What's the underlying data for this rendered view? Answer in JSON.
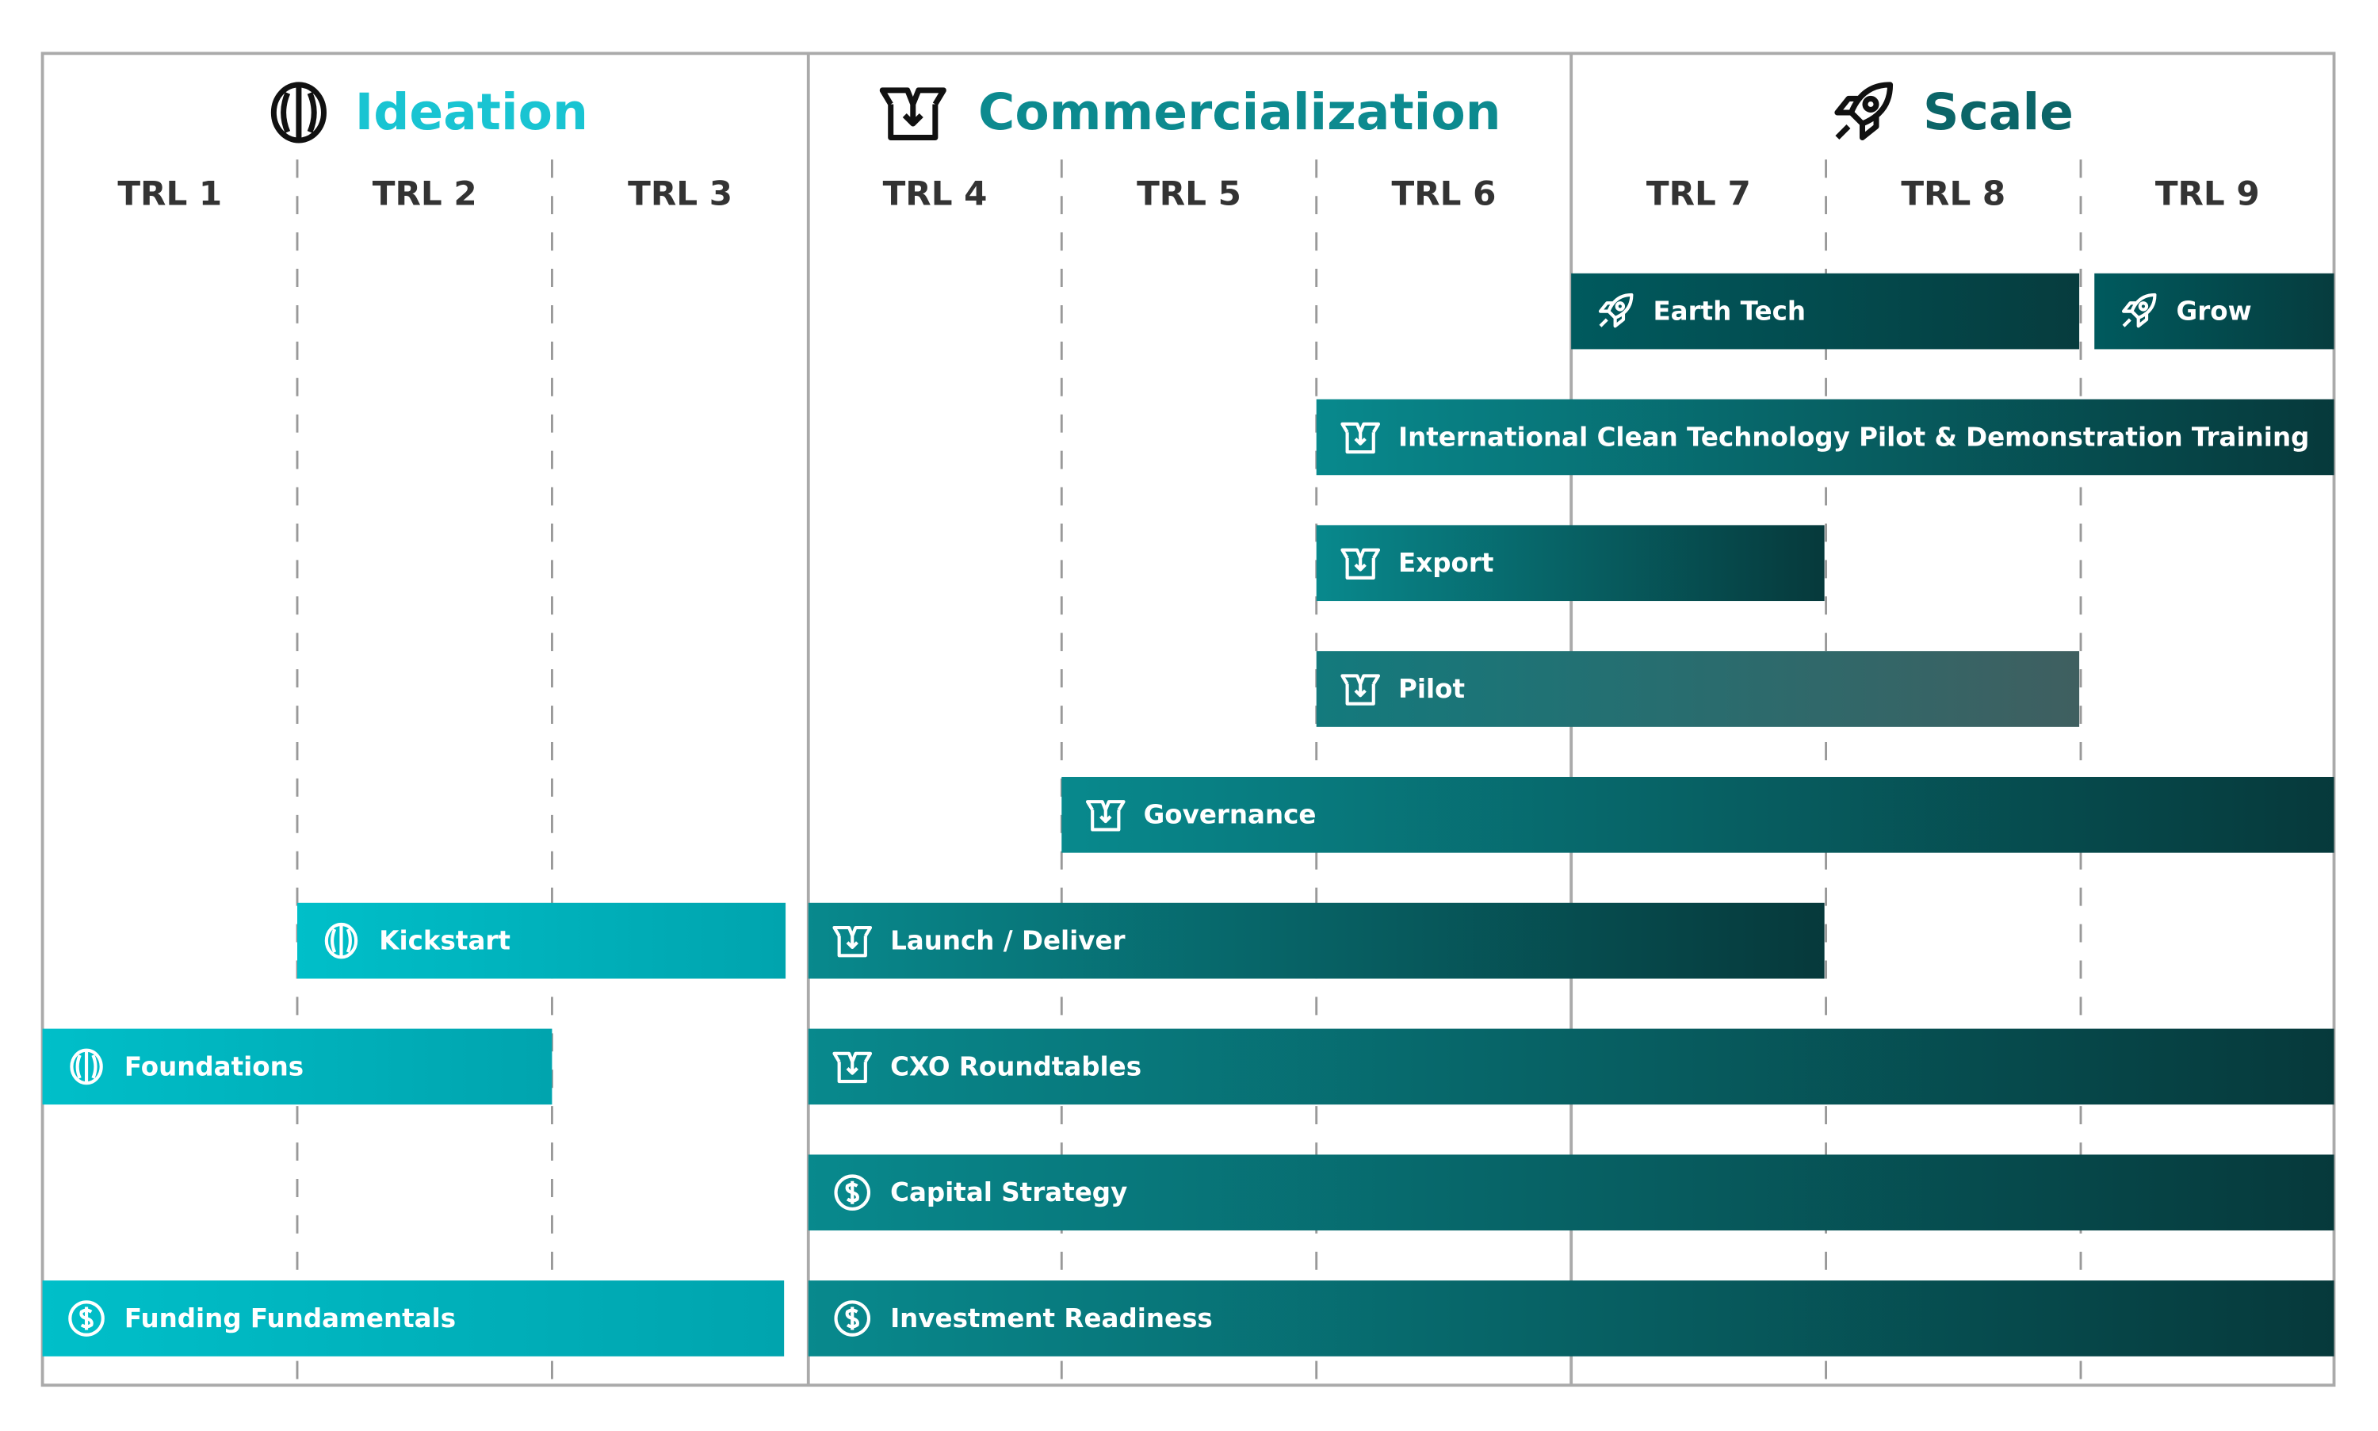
{
  "phases": [
    {
      "title": "Ideation"
    },
    {
      "title": "Commercialization"
    },
    {
      "title": "Scale"
    }
  ],
  "trl_labels": [
    "TRL 1",
    "TRL 2",
    "TRL 3",
    "TRL 4",
    "TRL 5",
    "TRL 6",
    "TRL 7",
    "TRL 8",
    "TRL 9"
  ],
  "programs": [
    {
      "label": "Earth Tech"
    },
    {
      "label": "Grow"
    },
    {
      "label": "International Clean Technology Pilot & Demonstration Training"
    },
    {
      "label": "Export"
    },
    {
      "label": "Pilot"
    },
    {
      "label": "Governance"
    },
    {
      "label": "Kickstart"
    },
    {
      "label": "Launch / Deliver"
    },
    {
      "label": "Foundations"
    },
    {
      "label": "CXO Roundtables"
    },
    {
      "label": "Capital Strategy"
    },
    {
      "label": "Funding Fundamentals"
    },
    {
      "label": "Investment Readiness"
    }
  ]
}
